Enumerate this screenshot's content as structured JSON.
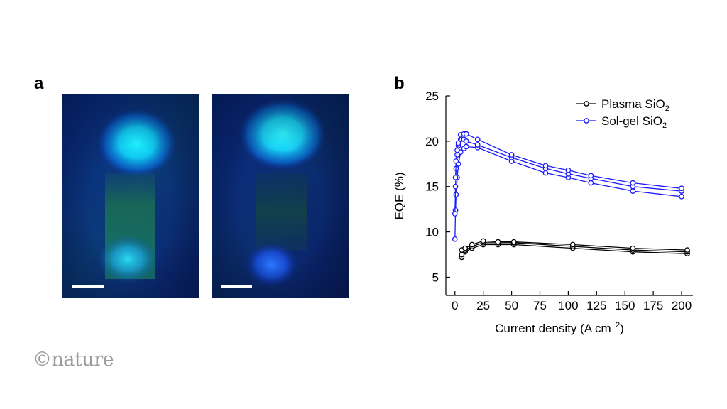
{
  "panel_labels": {
    "a": "a",
    "b": "b"
  },
  "logo": "©nature",
  "colors": {
    "plasma": "#000000",
    "solgel": "#1a1aff"
  },
  "chart_data": {
    "type": "line",
    "xlabel": "Current density (A cm",
    "xlabel_sup": "−2",
    "xlabel_close": ")",
    "ylabel": "EQE (%)",
    "xlim": [
      -8,
      210
    ],
    "ylim": [
      3,
      25
    ],
    "xticks": [
      0,
      25,
      50,
      75,
      100,
      125,
      150,
      175,
      200
    ],
    "yticks": [
      5,
      10,
      15,
      20,
      25
    ],
    "legend_position": "top-right",
    "legend": [
      {
        "label": "Plasma SiO",
        "sub": "2",
        "color": "#000000"
      },
      {
        "label": "Sol-gel SiO",
        "sub": "2",
        "color": "#1a1aff"
      }
    ],
    "series": [
      {
        "group": "Plasma SiO2",
        "color": "#000000",
        "x": [
          6,
          9,
          15,
          25,
          38,
          52,
          104,
          157,
          205
        ],
        "y": [
          7.2,
          7.8,
          8.2,
          8.6,
          8.6,
          8.6,
          8.2,
          7.8,
          7.6
        ]
      },
      {
        "group": "Plasma SiO2",
        "color": "#000000",
        "x": [
          6,
          9,
          15,
          25,
          38,
          52,
          104,
          157,
          205
        ],
        "y": [
          7.5,
          8.0,
          8.4,
          8.8,
          8.8,
          8.8,
          8.4,
          8.0,
          7.8
        ]
      },
      {
        "group": "Plasma SiO2",
        "color": "#000000",
        "x": [
          6,
          9,
          15,
          25,
          38,
          52,
          104,
          157,
          205
        ],
        "y": [
          8.0,
          8.2,
          8.6,
          9.0,
          8.9,
          8.9,
          8.6,
          8.2,
          8.0
        ]
      },
      {
        "group": "Sol-gel SiO2",
        "color": "#1a1aff",
        "x": [
          0,
          0.5,
          1,
          2,
          3,
          5,
          8,
          10,
          20,
          50,
          80,
          100,
          120,
          157,
          200
        ],
        "y": [
          9.2,
          12.4,
          14.1,
          16.0,
          17.5,
          18.8,
          19.2,
          19.4,
          19.3,
          17.8,
          16.5,
          16.0,
          15.4,
          14.5,
          13.9
        ]
      },
      {
        "group": "Sol-gel SiO2",
        "color": "#1a1aff",
        "x": [
          0,
          0.5,
          1,
          2,
          3,
          5,
          8,
          10,
          20,
          50,
          80,
          100,
          120,
          157,
          200
        ],
        "y": [
          12.0,
          15.0,
          17.0,
          18.5,
          19.5,
          20.2,
          20.2,
          20.0,
          19.6,
          18.2,
          17.0,
          16.4,
          15.9,
          15.0,
          14.5
        ]
      },
      {
        "group": "Sol-gel SiO2",
        "color": "#1a1aff",
        "x": [
          0.5,
          1,
          2,
          3,
          5,
          8,
          10,
          20,
          50,
          80,
          100,
          120,
          157,
          200
        ],
        "y": [
          16.0,
          17.8,
          19.0,
          19.8,
          20.7,
          20.8,
          20.8,
          20.2,
          18.5,
          17.3,
          16.8,
          16.2,
          15.4,
          14.8
        ]
      }
    ]
  }
}
